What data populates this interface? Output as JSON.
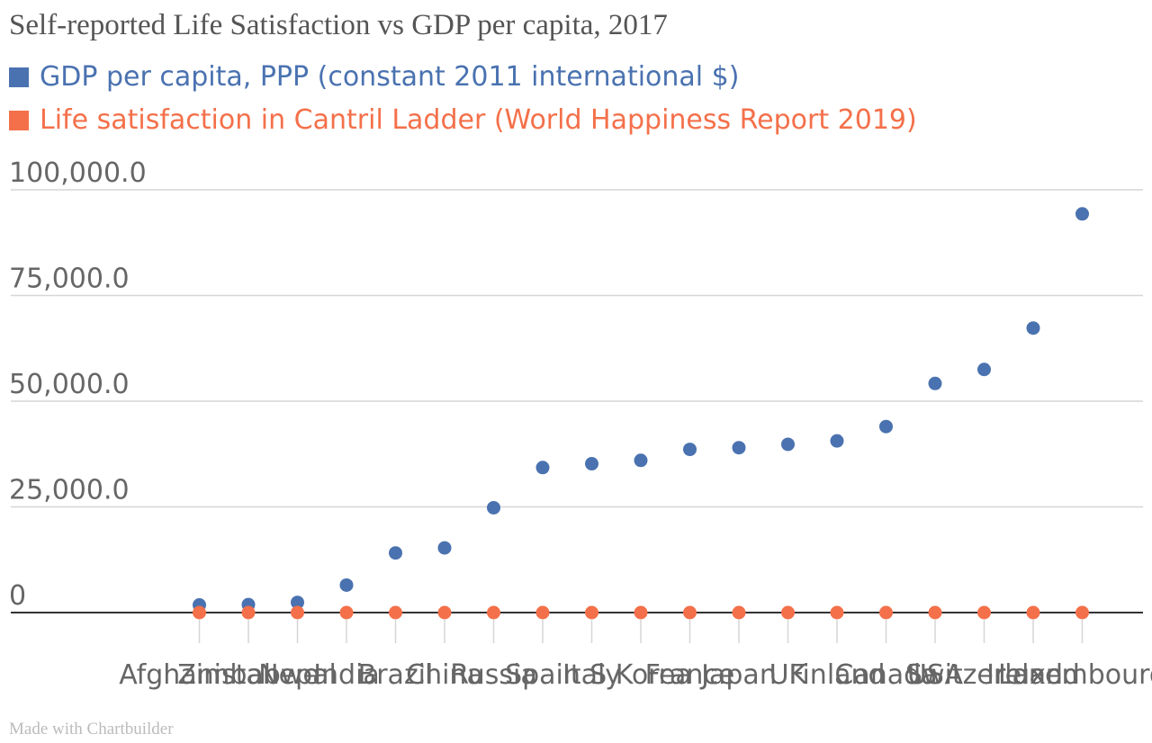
{
  "title": "Self-reported Life Satisfaction vs GDP per capita, 2017",
  "credit": "Made with Chartbuilder",
  "chart_data": {
    "type": "scatter",
    "title": "Self-reported Life Satisfaction vs GDP per capita, 2017",
    "categories": [
      "Afghanistan",
      "Zimbabwe",
      "Nepal",
      "India",
      "Brazil",
      "China",
      "Russia",
      "Spain",
      "Italy",
      "S Korea",
      "France",
      "Japan",
      "UK",
      "Finland",
      "Canada",
      "USA",
      "Switzerland",
      "Ireland",
      "Luxembourg"
    ],
    "series": [
      {
        "name": "GDP per capita, PPP (constant 2011 international $)",
        "color": "#4a72b0",
        "values": [
          1800,
          1900,
          2400,
          6500,
          14100,
          15300,
          24800,
          34300,
          35200,
          36000,
          38600,
          39000,
          39800,
          40600,
          44000,
          54200,
          57500,
          67300,
          94300
        ]
      },
      {
        "name": "Life satisfaction in Cantril Ladder (World Happiness Report 2019)",
        "color": "#f4704a",
        "values": [
          2.66,
          3.64,
          4.96,
          4.19,
          6.31,
          5.1,
          5.84,
          6.31,
          6.2,
          5.87,
          6.64,
          5.91,
          7.1,
          7.79,
          7.18,
          6.99,
          7.47,
          7.06,
          6.97
        ]
      }
    ],
    "y_ticks": [
      "0",
      "25,000.0",
      "50,000.0",
      "75,000.0",
      "100,000.0"
    ],
    "ylim": [
      0,
      100000
    ],
    "grid": true,
    "legend": "top-left"
  }
}
